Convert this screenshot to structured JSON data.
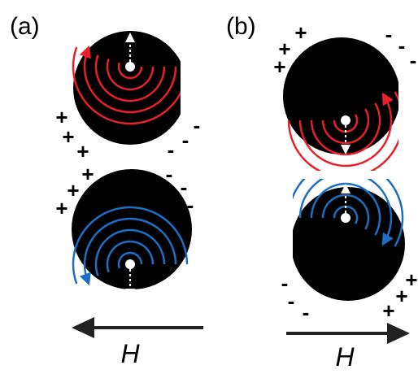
{
  "panels": [
    {
      "label": "(a)",
      "field": "H",
      "disks": [
        {
          "plus": [
            "+",
            "+",
            "+"
          ],
          "minus": [
            "-",
            "-",
            "-"
          ]
        },
        {
          "plus": [
            "+",
            "+",
            "+"
          ],
          "minus": [
            "-",
            "-",
            "-"
          ]
        }
      ]
    },
    {
      "label": "(b)",
      "field": "H",
      "disks": [
        {
          "plus": [
            "+",
            "+",
            "+"
          ],
          "minus": [
            "-",
            "-",
            "-"
          ]
        },
        {
          "plus": [
            "+",
            "+",
            "+"
          ],
          "minus": [
            "-",
            "-",
            "-"
          ]
        }
      ]
    }
  ]
}
